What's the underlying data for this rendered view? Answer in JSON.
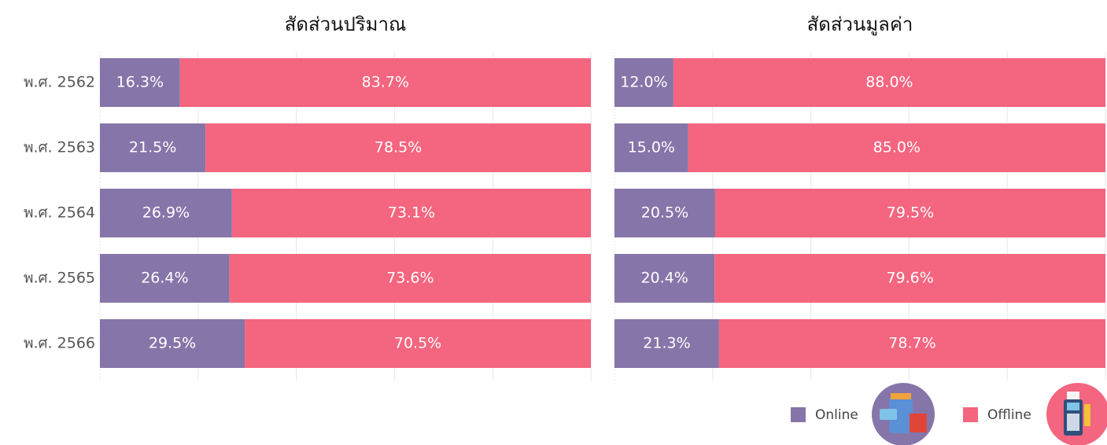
{
  "chart_data": [
    {
      "type": "bar",
      "orientation": "horizontal",
      "stacked": true,
      "title": "สัดส่วนปริมาณ",
      "categories": [
        "พ.ศ. 2562",
        "พ.ศ. 2563",
        "พ.ศ. 2564",
        "พ.ศ. 2565",
        "พ.ศ. 2566"
      ],
      "xlim": [
        0,
        100
      ],
      "xticks": [
        0,
        20,
        40,
        60,
        80,
        100
      ],
      "grid": true,
      "series": [
        {
          "name": "Online",
          "color": "#8675a9",
          "values": [
            16.3,
            21.5,
            26.9,
            26.4,
            29.5
          ],
          "value_labels": [
            "16.3%",
            "21.5%",
            "26.9%",
            "26.4%",
            "29.5%"
          ]
        },
        {
          "name": "Offline",
          "color": "#f4657f",
          "values": [
            83.7,
            78.5,
            73.1,
            73.6,
            70.5
          ],
          "value_labels": [
            "83.7%",
            "78.5%",
            "73.1%",
            "73.6%",
            "70.5%"
          ]
        }
      ]
    },
    {
      "type": "bar",
      "orientation": "horizontal",
      "stacked": true,
      "title": "สัดส่วนมูลค่า",
      "xlim": [
        0,
        100
      ],
      "xticks": [
        0,
        20,
        40,
        60,
        80,
        100
      ],
      "grid": true,
      "series": [
        {
          "color": "#8675a9",
          "values": [
            12.0,
            15.0,
            20.5,
            20.4,
            21.3
          ],
          "value_labels": [
            "12.0%",
            "15.0%",
            "20.5%",
            "20.4%",
            "21.3%"
          ]
        },
        {
          "color": "#f4657f",
          "values": [
            88.0,
            85.0,
            79.5,
            79.6,
            78.7
          ],
          "value_labels": [
            "88.0%",
            "85.0%",
            "79.5%",
            "79.6%",
            "78.7%"
          ]
        }
      ]
    }
  ]
}
